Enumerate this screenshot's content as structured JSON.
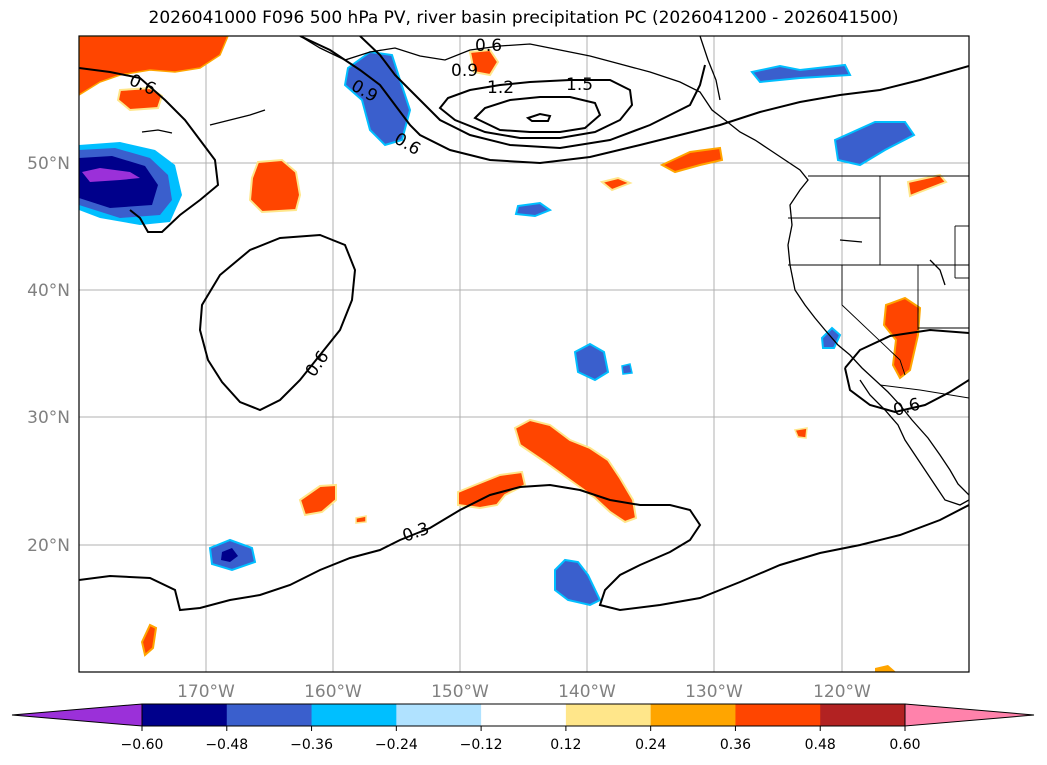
{
  "title": "2026041000 F096 500 hPa PV, river basin precipitation PC (2026041200 - 2026041500)",
  "map": {
    "projection": "equirectangular",
    "lon_range": [
      -180,
      -110
    ],
    "lat_range": [
      10,
      60
    ],
    "grid": true,
    "lat_tick_labels": [
      "50°N",
      "40°N",
      "30°N",
      "20°N"
    ],
    "lon_tick_labels": [
      "170°W",
      "160°W",
      "150°W",
      "140°W",
      "130°W",
      "120°W"
    ],
    "contour_labels": [
      "0.6",
      "0.9",
      "1.2",
      "1.5",
      "0.9",
      "0.6",
      "0.6",
      "0.6",
      "0.3",
      "0.6"
    ]
  },
  "colorbar": {
    "tick_labels": [
      "−0.60",
      "−0.48",
      "−0.36",
      "−0.24",
      "−0.12",
      "0.12",
      "0.24",
      "0.36",
      "0.48",
      "0.60"
    ],
    "under_color": "#9b30d9",
    "colors": [
      "#00008b",
      "#3a5fcd",
      "#00bfff",
      "#b0e2ff",
      "#ffffff",
      "#ffe68a",
      "#ffa500",
      "#ff4500",
      "#b22222"
    ],
    "over_color": "#ff82ab"
  }
}
